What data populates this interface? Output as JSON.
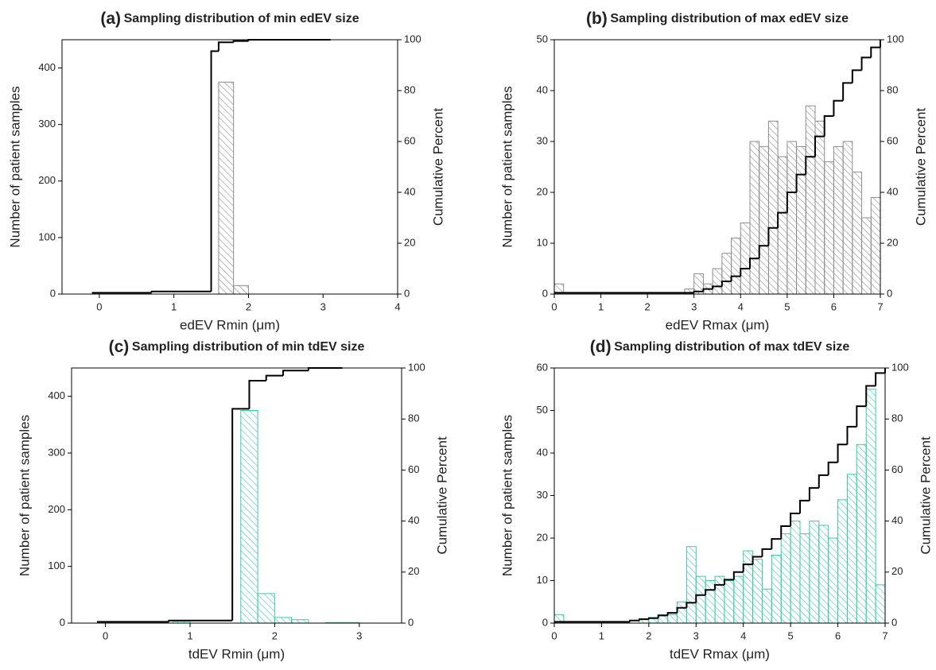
{
  "chart_data": [
    {
      "type": "histogram",
      "panel": "(a)",
      "title": "Sampling distribution of min edEV size",
      "x_label": "edEV Rmin (μm)",
      "y_label": "Number of patient samples",
      "y2_label": "Cumulative Percent",
      "bins": [
        1.6,
        1.8,
        2.0
      ],
      "values": [
        375,
        15
      ],
      "color": "#8c8c8c",
      "xlim": [
        -0.5,
        4
      ],
      "xticks": [
        0,
        1,
        2,
        3,
        4
      ],
      "ylim": [
        0,
        450
      ],
      "yticks": [
        0,
        100,
        200,
        300,
        400
      ],
      "y2lim": [
        0,
        100
      ],
      "y2ticks": [
        0,
        20,
        40,
        60,
        80,
        100
      ],
      "cumulative": {
        "x": [
          -0.1,
          0.7,
          1.5,
          1.6,
          1.8,
          2.0,
          3.1
        ],
        "values": [
          0.5,
          1,
          95.5,
          99,
          99.5,
          100,
          100
        ],
        "axis": "y2",
        "color": "#000000"
      }
    },
    {
      "type": "histogram",
      "panel": "(b)",
      "title": "Sampling distribution of max edEV size",
      "x_label": "edEV Rmax (μm)",
      "y_label": "Number of patient samples",
      "y2_label": "Cumulative Percent",
      "bins": [
        0,
        0.2,
        0.4,
        0.6,
        0.8,
        1,
        1.2,
        1.4,
        1.6,
        1.8,
        2,
        2.2,
        2.4,
        2.6,
        2.8,
        3,
        3.2,
        3.4,
        3.6,
        3.8,
        4,
        4.2,
        4.4,
        4.6,
        4.8,
        5,
        5.2,
        5.4,
        5.6,
        5.8,
        6,
        6.2,
        6.4,
        6.6,
        6.8,
        7
      ],
      "values": [
        2,
        0,
        0,
        0,
        0,
        0,
        0,
        0,
        0,
        0,
        0,
        0,
        0,
        0,
        1,
        4,
        2,
        5,
        8,
        11,
        14,
        30,
        29,
        34,
        27,
        30,
        29,
        37,
        34,
        26,
        29,
        30,
        24,
        15,
        19
      ],
      "color": "#8c8c8c",
      "xlim": [
        0,
        7
      ],
      "xticks": [
        0,
        1,
        2,
        3,
        4,
        5,
        6,
        7
      ],
      "ylim": [
        0,
        50
      ],
      "yticks": [
        0,
        10,
        20,
        30,
        40,
        50
      ],
      "y2lim": [
        0,
        100
      ],
      "y2ticks": [
        0,
        20,
        40,
        60,
        80,
        100
      ],
      "cumulative": {
        "x": [
          0,
          3,
          3.2,
          3.4,
          3.6,
          3.8,
          4,
          4.2,
          4.4,
          4.6,
          4.8,
          5,
          5.2,
          5.4,
          5.6,
          5.8,
          6,
          6.2,
          6.4,
          6.6,
          6.8,
          7
        ],
        "values": [
          0.5,
          1,
          2,
          3,
          5,
          7,
          10,
          14,
          19,
          26,
          32,
          40,
          47,
          54,
          62,
          70,
          76,
          83,
          88,
          93,
          97,
          100
        ],
        "axis": "y2",
        "color": "#000000"
      }
    },
    {
      "type": "histogram",
      "panel": "(c)",
      "title": "Sampling distribution of min tdEV size",
      "x_label": "tdEV Rmin (μm)",
      "y_label": "Number of patient samples",
      "y2_label": "Cumulative Percent",
      "bins": [
        0.8,
        1.0,
        1.2,
        1.4,
        1.6,
        1.8,
        2.0,
        2.2,
        2.4,
        2.6,
        2.8,
        3.0
      ],
      "values": [
        3,
        0,
        0,
        0,
        375,
        52,
        10,
        6,
        0,
        1,
        1
      ],
      "color": "#3cc9a8",
      "xlim": [
        -0.4,
        3.5
      ],
      "xticks": [
        0,
        1,
        2,
        3
      ],
      "ylim": [
        0,
        450
      ],
      "yticks": [
        0,
        100,
        200,
        300,
        400
      ],
      "y2lim": [
        0,
        100
      ],
      "y2ticks": [
        0,
        20,
        40,
        60,
        80,
        100
      ],
      "cumulative": {
        "x": [
          -0.1,
          0.75,
          1.5,
          1.7,
          1.9,
          2.1,
          2.4,
          2.8
        ],
        "values": [
          0.5,
          1,
          84,
          95,
          97,
          99,
          100,
          100
        ],
        "axis": "y2",
        "color": "#000000"
      }
    },
    {
      "type": "histogram",
      "panel": "(d)",
      "title": "Sampling distribution of max tdEV size",
      "x_label": "tdEV Rmax (μm)",
      "y_label": "Number of patient samples",
      "y2_label": "Cumulative Percent",
      "bins": [
        0,
        0.2,
        0.4,
        0.6,
        0.8,
        1,
        1.2,
        1.4,
        1.6,
        1.8,
        2,
        2.2,
        2.4,
        2.6,
        2.8,
        3,
        3.2,
        3.4,
        3.6,
        3.8,
        4,
        4.2,
        4.4,
        4.6,
        4.8,
        5,
        5.2,
        5.4,
        5.6,
        5.8,
        6,
        6.2,
        6.4,
        6.6,
        6.8,
        7
      ],
      "values": [
        2,
        0,
        0,
        0,
        0,
        0,
        0,
        0,
        0,
        1,
        1,
        2,
        2,
        5,
        18,
        11,
        10,
        11,
        10,
        11,
        17,
        15,
        8,
        16,
        21,
        24,
        21,
        24,
        23,
        20,
        29,
        35,
        42,
        55,
        9
      ],
      "color": "#3cc9a8",
      "xlim": [
        0,
        7
      ],
      "xticks": [
        0,
        1,
        2,
        3,
        4,
        5,
        6,
        7
      ],
      "ylim": [
        0,
        60
      ],
      "yticks": [
        0,
        10,
        20,
        30,
        40,
        50,
        60
      ],
      "y2lim": [
        0,
        100
      ],
      "y2ticks": [
        0,
        20,
        40,
        60,
        80,
        100
      ],
      "cumulative": {
        "x": [
          0,
          1.6,
          1.8,
          2,
          2.2,
          2.4,
          2.6,
          2.8,
          3,
          3.2,
          3.4,
          3.6,
          3.8,
          4,
          4.2,
          4.4,
          4.6,
          4.8,
          5,
          5.2,
          5.4,
          5.6,
          5.8,
          6,
          6.2,
          6.4,
          6.6,
          6.8,
          7
        ],
        "values": [
          0.5,
          1,
          1.5,
          2,
          3,
          4,
          6,
          8,
          11,
          13,
          15,
          17,
          20,
          23,
          26,
          29,
          33,
          38,
          43,
          48,
          53,
          58,
          63,
          70,
          77,
          85,
          93,
          98,
          100
        ],
        "axis": "y2",
        "color": "#000000"
      }
    }
  ]
}
